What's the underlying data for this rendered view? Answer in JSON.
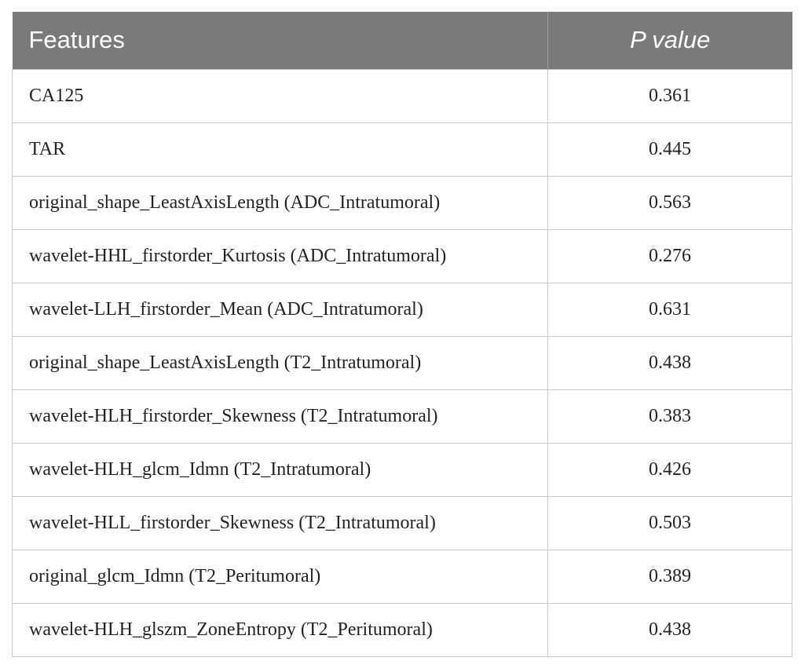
{
  "table": {
    "headers": {
      "features": "Features",
      "p_value": "P value"
    },
    "rows": [
      {
        "feature": "CA125",
        "p_value": "0.361"
      },
      {
        "feature": "TAR",
        "p_value": "0.445"
      },
      {
        "feature": "original_shape_LeastAxisLength (ADC_Intratumoral)",
        "p_value": "0.563"
      },
      {
        "feature": "wavelet-HHL_firstorder_Kurtosis (ADC_Intratumoral)",
        "p_value": "0.276"
      },
      {
        "feature": "wavelet-LLH_firstorder_Mean (ADC_Intratumoral)",
        "p_value": "0.631"
      },
      {
        "feature": "original_shape_LeastAxisLength (T2_Intratumoral)",
        "p_value": "0.438"
      },
      {
        "feature": "wavelet-HLH_firstorder_Skewness (T2_Intratumoral)",
        "p_value": "0.383"
      },
      {
        "feature": "wavelet-HLH_glcm_Idmn (T2_Intratumoral)",
        "p_value": "0.426"
      },
      {
        "feature": "wavelet-HLL_firstorder_Skewness (T2_Intratumoral)",
        "p_value": "0.503"
      },
      {
        "feature": "original_glcm_Idmn (T2_Peritumoral)",
        "p_value": "0.389"
      },
      {
        "feature": "wavelet-HLH_glszm_ZoneEntropy (T2_Peritumoral)",
        "p_value": "0.438"
      }
    ]
  },
  "colors": {
    "header_background": "#7a7a7a",
    "header_text": "#ffffff",
    "cell_border": "#c8c8c8",
    "cell_text": "#222222"
  }
}
